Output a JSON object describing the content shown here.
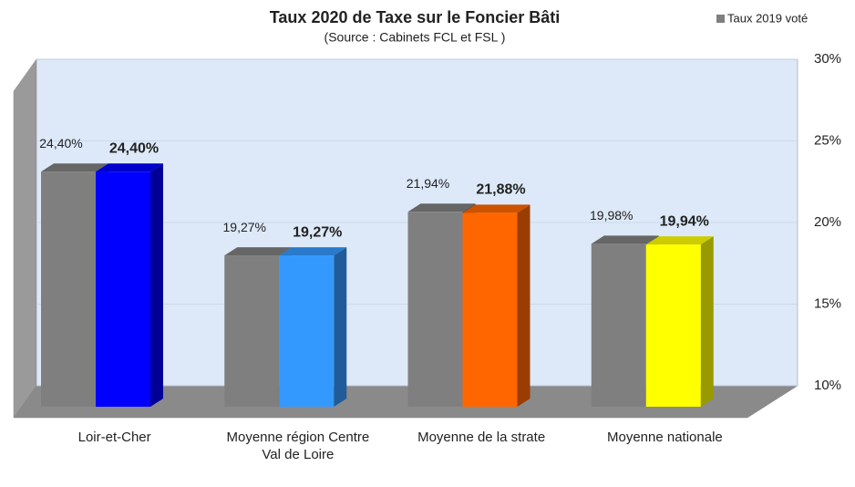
{
  "chart_data": {
    "type": "bar3d",
    "title": "Taux 2020 de Taxe sur le Foncier Bâti",
    "subtitle": "(Source : Cabinets FCL et FSL )",
    "categories": [
      "Loir-et-Cher",
      "Moyenne région Centre Val de Loire",
      "Moyenne de la strate",
      "Moyenne nationale"
    ],
    "series": [
      {
        "name": "Taux 2019 voté",
        "color": "#7f7f7f",
        "values": [
          24.4,
          19.27,
          21.94,
          19.98
        ],
        "value_labels": [
          "24,40%",
          "19,27%",
          "21,94%",
          "19,98%"
        ]
      },
      {
        "colors": [
          "#0000ff",
          "#3399ff",
          "#ff6600",
          "#ffff00"
        ],
        "values": [
          24.4,
          19.27,
          21.88,
          19.94
        ],
        "value_labels": [
          "24,40%",
          "19,27%",
          "21,88%",
          "19,94%"
        ]
      }
    ],
    "ylim": [
      10,
      30
    ],
    "yticks": [
      {
        "value": 10,
        "label": "10%"
      },
      {
        "value": 15,
        "label": "15%"
      },
      {
        "value": 20,
        "label": "20%"
      },
      {
        "value": 25,
        "label": "25%"
      },
      {
        "value": 30,
        "label": "30%"
      }
    ],
    "legend": "top-right"
  }
}
